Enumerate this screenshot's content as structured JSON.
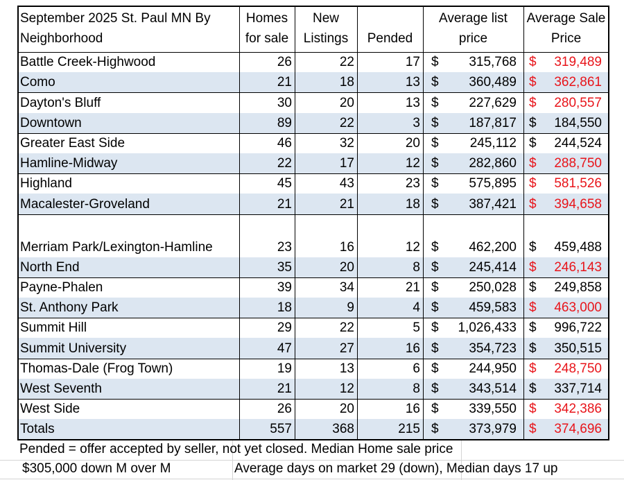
{
  "header": [
    "September 2025 St. Paul MN By Neighborhood",
    "Homes for sale",
    "New Listings",
    "Pended",
    "Average list price",
    "Average Sale Price"
  ],
  "currency": "$",
  "table": {
    "rows": [
      {
        "name": "Battle Creek-Highwood",
        "homes": "26",
        "new": "22",
        "pended": "17",
        "list": "315,768",
        "sale": "319,489",
        "sale_color": "#e8141a"
      },
      {
        "name": "Como",
        "homes": "21",
        "new": "18",
        "pended": "13",
        "list": "360,489",
        "sale": "362,861",
        "sale_color": "#e8141a"
      },
      {
        "name": "Dayton's Bluff",
        "homes": "30",
        "new": "20",
        "pended": "13",
        "list": "227,629",
        "sale": "280,557",
        "sale_color": "#e8141a"
      },
      {
        "name": "Downtown",
        "homes": "89",
        "new": "22",
        "pended": "3",
        "list": "187,817",
        "sale": "184,550",
        "sale_color": "#000000"
      },
      {
        "name": "Greater East Side",
        "homes": "46",
        "new": "32",
        "pended": "20",
        "list": "245,112",
        "sale": "244,524",
        "sale_color": "#000000"
      },
      {
        "name": "Hamline-Midway",
        "homes": "22",
        "new": "17",
        "pended": "12",
        "list": "282,860",
        "sale": "288,750",
        "sale_color": "#e8141a"
      },
      {
        "name": "Highland",
        "homes": "45",
        "new": "43",
        "pended": "23",
        "list": "575,895",
        "sale": "581,526",
        "sale_color": "#e8141a"
      },
      {
        "name": "Macalester-Groveland",
        "homes": "21",
        "new": "21",
        "pended": "18",
        "list": "387,421",
        "sale": "394,658",
        "sale_color": "#e8141a"
      },
      {
        "name": "Merriam Park/Lexington-Hamline",
        "homes": "23",
        "new": "16",
        "pended": "12",
        "list": "462,200",
        "sale": "459,488",
        "sale_color": "#000000"
      },
      {
        "name": "North End",
        "homes": "35",
        "new": "20",
        "pended": "8",
        "list": "245,414",
        "sale": "246,143",
        "sale_color": "#e8141a"
      },
      {
        "name": "Payne-Phalen",
        "homes": "39",
        "new": "34",
        "pended": "21",
        "list": "250,028",
        "sale": "249,858",
        "sale_color": "#000000"
      },
      {
        "name": "St. Anthony Park",
        "homes": "18",
        "new": "9",
        "pended": "4",
        "list": "459,583",
        "sale": "463,000",
        "sale_color": "#e8141a"
      },
      {
        "name": "Summit Hill",
        "homes": "29",
        "new": "22",
        "pended": "5",
        "list": "1,026,433",
        "sale": "996,722",
        "sale_color": "#000000"
      },
      {
        "name": "Summit University",
        "homes": "47",
        "new": "27",
        "pended": "16",
        "list": "354,723",
        "sale": "350,515",
        "sale_color": "#000000"
      },
      {
        "name": "Thomas-Dale (Frog Town)",
        "homes": "19",
        "new": "13",
        "pended": "6",
        "list": "244,950",
        "sale": "248,750",
        "sale_color": "#e8141a"
      },
      {
        "name": "West Seventh",
        "homes": "21",
        "new": "12",
        "pended": "8",
        "list": "343,514",
        "sale": "337,714",
        "sale_color": "#000000"
      },
      {
        "name": "West Side",
        "homes": "26",
        "new": "20",
        "pended": "16",
        "list": "339,550",
        "sale": "342,386",
        "sale_color": "#e8141a"
      },
      {
        "name": "Totals",
        "homes": "557",
        "new": "368",
        "pended": "215",
        "list": "373,979",
        "sale": "374,696",
        "sale_color": "#e8141a"
      }
    ]
  },
  "notes": [
    "Pended = offer accepted by seller, not yet closed. Median Home sale price",
    "$305,000 down  M over M",
    "Average days on market 29 (down), Median days 17 up"
  ]
}
